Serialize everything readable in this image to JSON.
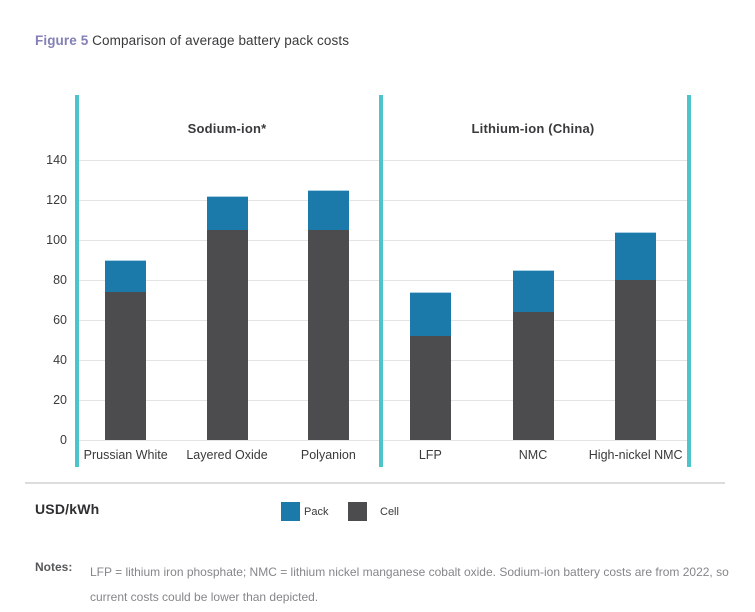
{
  "title": {
    "prefix": "Figure 5",
    "text": "Comparison of average battery pack costs"
  },
  "axis_unit_label": "USD/kWh",
  "legend": [
    {
      "label": "Pack",
      "color": "#1b7aa9"
    },
    {
      "label": "Cell",
      "color": "#4c4c4e"
    }
  ],
  "notes": {
    "label": "Notes:",
    "text": "LFP = lithium iron phosphate; NMC = lithium nickel manganese cobalt oxide. Sodium-ion battery costs are from 2022, so current costs could be lower than depicted."
  },
  "chart_data": {
    "type": "bar",
    "stacked": true,
    "title": "Comparison of average battery pack costs",
    "ylabel": "USD/kWh",
    "ylim": [
      0,
      150
    ],
    "y_ticks": [
      0,
      20,
      40,
      60,
      80,
      100,
      120,
      140
    ],
    "grid": true,
    "legend_position": "bottom",
    "groups": [
      {
        "label": "Sodium-ion*",
        "categories": [
          "Prussian White",
          "Layered Oxide",
          "Polyanion"
        ]
      },
      {
        "label": "Lithium-ion (China)",
        "categories": [
          "LFP",
          "NMC",
          "High-nickel NMC"
        ]
      }
    ],
    "categories": [
      "Prussian White",
      "Layered Oxide",
      "Polyanion",
      "LFP",
      "NMC",
      "High-nickel NMC"
    ],
    "series": [
      {
        "name": "Cell",
        "color": "#4c4c4e",
        "values": [
          74,
          105,
          105,
          52,
          64,
          80
        ]
      },
      {
        "name": "Pack",
        "color": "#1b7aa9",
        "values": [
          16,
          17,
          20,
          22,
          21,
          24
        ]
      }
    ],
    "stack_totals": [
      90,
      122,
      125,
      74,
      85,
      104
    ],
    "accent_divider_color": "#4dc4c9"
  }
}
